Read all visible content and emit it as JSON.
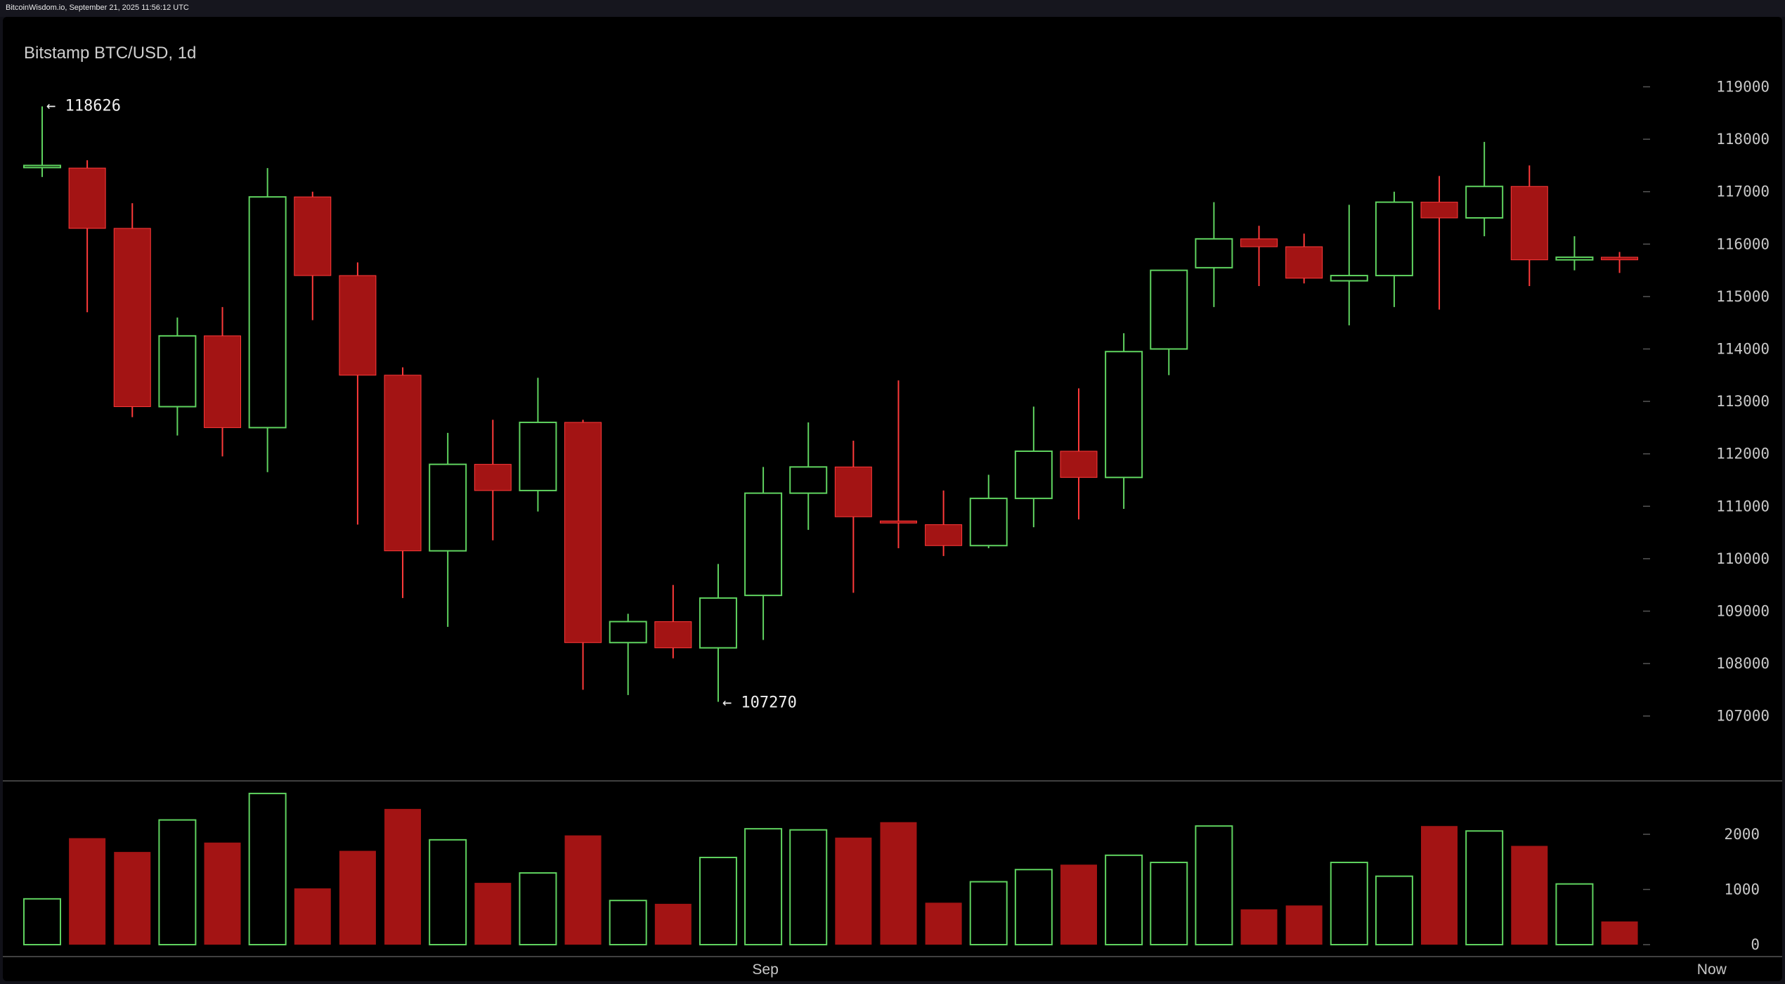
{
  "header": {
    "source": "BitcoinWisdom.io, September 21, 2025 11:56:12 UTC"
  },
  "chart_data": {
    "type": "candlestick",
    "title": "Bitstamp BTC/USD, 1d",
    "price_axis": {
      "ticks": [
        119000,
        118000,
        117000,
        116000,
        115000,
        114000,
        113000,
        112000,
        111000,
        110000,
        109000,
        108000,
        107000
      ]
    },
    "volume_axis": {
      "ticks": [
        2000,
        1000,
        0
      ]
    },
    "x_labels": [
      {
        "label": "Sep",
        "index": 16
      },
      {
        "label": "Now",
        "index": 37
      }
    ],
    "annotations": [
      {
        "label": "← 118626",
        "index": 0,
        "price": 118626,
        "kind": "high"
      },
      {
        "label": "← 107270",
        "index": 15,
        "price": 107270,
        "kind": "low"
      }
    ],
    "colors": {
      "up": "#5fd35f",
      "down": "#a31414",
      "down_wick": "#ff3a3a",
      "grid": "#555555",
      "axis_text": "#c8c8c8"
    },
    "candles": [
      {
        "open": 117500,
        "high": 118626,
        "low": 117280,
        "close": 117500,
        "volume": 830
      },
      {
        "open": 117450,
        "high": 117600,
        "low": 114700,
        "close": 116300,
        "volume": 1930
      },
      {
        "open": 116300,
        "high": 116780,
        "low": 112700,
        "close": 112900,
        "volume": 1680
      },
      {
        "open": 112900,
        "high": 114600,
        "low": 112350,
        "close": 114250,
        "volume": 2260
      },
      {
        "open": 114250,
        "high": 114800,
        "low": 111950,
        "close": 112500,
        "volume": 1850
      },
      {
        "open": 112500,
        "high": 117450,
        "low": 111650,
        "close": 116900,
        "volume": 2740
      },
      {
        "open": 116900,
        "high": 117000,
        "low": 114550,
        "close": 115400,
        "volume": 1020
      },
      {
        "open": 115400,
        "high": 115650,
        "low": 110650,
        "close": 113500,
        "volume": 1700
      },
      {
        "open": 113500,
        "high": 113650,
        "low": 109250,
        "close": 110150,
        "volume": 2460
      },
      {
        "open": 110150,
        "high": 112400,
        "low": 108700,
        "close": 111800,
        "volume": 1900
      },
      {
        "open": 111800,
        "high": 112650,
        "low": 110350,
        "close": 111300,
        "volume": 1120
      },
      {
        "open": 111300,
        "high": 113450,
        "low": 110900,
        "close": 112600,
        "volume": 1300
      },
      {
        "open": 112600,
        "high": 112650,
        "low": 107500,
        "close": 108400,
        "volume": 1980
      },
      {
        "open": 108400,
        "high": 108950,
        "low": 107400,
        "close": 108800,
        "volume": 800
      },
      {
        "open": 108800,
        "high": 109500,
        "low": 108100,
        "close": 108300,
        "volume": 740
      },
      {
        "open": 108300,
        "high": 109900,
        "low": 107270,
        "close": 109250,
        "volume": 1580
      },
      {
        "open": 109300,
        "high": 111750,
        "low": 108450,
        "close": 111250,
        "volume": 2100
      },
      {
        "open": 111250,
        "high": 112600,
        "low": 110550,
        "close": 111750,
        "volume": 2080
      },
      {
        "open": 111750,
        "high": 112250,
        "low": 109350,
        "close": 110800,
        "volume": 1940
      },
      {
        "open": 110720,
        "high": 113400,
        "low": 110200,
        "close": 110680,
        "volume": 2220
      },
      {
        "open": 110650,
        "high": 111300,
        "low": 110050,
        "close": 110250,
        "volume": 760
      },
      {
        "open": 110250,
        "high": 111600,
        "low": 110200,
        "close": 111150,
        "volume": 1140
      },
      {
        "open": 111150,
        "high": 112900,
        "low": 110600,
        "close": 112050,
        "volume": 1360
      },
      {
        "open": 112050,
        "high": 113250,
        "low": 110750,
        "close": 111550,
        "volume": 1450
      },
      {
        "open": 111550,
        "high": 114300,
        "low": 110950,
        "close": 113950,
        "volume": 1620
      },
      {
        "open": 114000,
        "high": 115500,
        "low": 113500,
        "close": 115500,
        "volume": 1490
      },
      {
        "open": 115550,
        "high": 116800,
        "low": 114800,
        "close": 116100,
        "volume": 2150
      },
      {
        "open": 116100,
        "high": 116350,
        "low": 115200,
        "close": 115950,
        "volume": 640
      },
      {
        "open": 115950,
        "high": 116200,
        "low": 115250,
        "close": 115350,
        "volume": 710
      },
      {
        "open": 115300,
        "high": 116750,
        "low": 114450,
        "close": 115400,
        "volume": 1490
      },
      {
        "open": 115400,
        "high": 117000,
        "low": 114800,
        "close": 116800,
        "volume": 1240
      },
      {
        "open": 116800,
        "high": 117300,
        "low": 114750,
        "close": 116500,
        "volume": 2150
      },
      {
        "open": 116500,
        "high": 117950,
        "low": 116150,
        "close": 117100,
        "volume": 2060
      },
      {
        "open": 117100,
        "high": 117500,
        "low": 115200,
        "close": 115700,
        "volume": 1790
      },
      {
        "open": 115700,
        "high": 116150,
        "low": 115500,
        "close": 115750,
        "volume": 1100
      },
      {
        "open": 115750,
        "high": 115850,
        "low": 115450,
        "close": 115700,
        "volume": 420
      }
    ]
  }
}
